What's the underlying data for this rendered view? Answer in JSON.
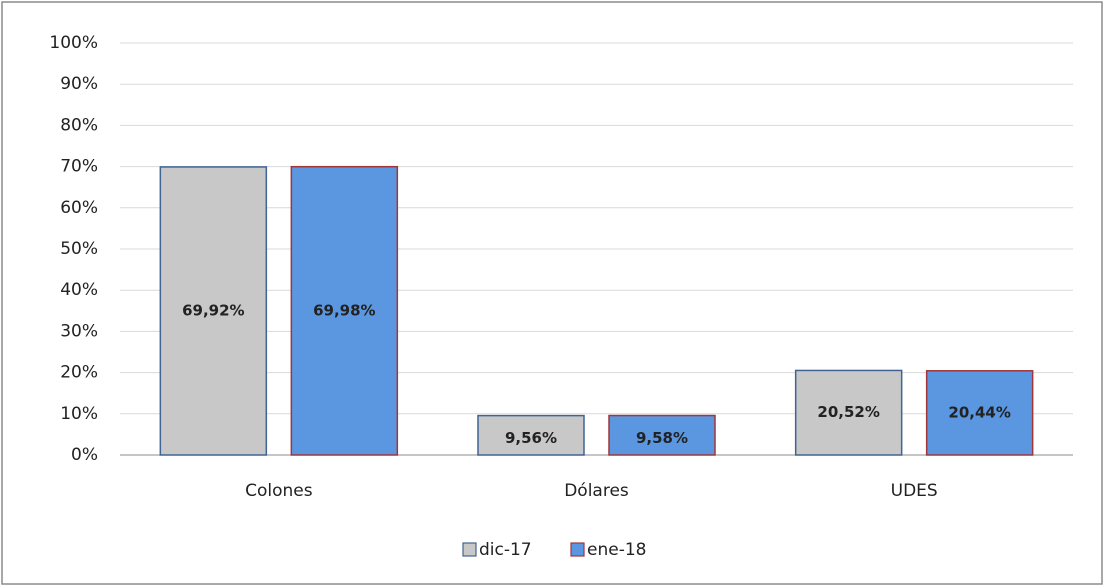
{
  "chart_data": {
    "type": "bar",
    "categories": [
      "Colones",
      "Dólares",
      "UDES"
    ],
    "series": [
      {
        "name": "dic-17",
        "color": "#c8c8c8",
        "edgecolor": "#3f6392",
        "values": [
          69.92,
          9.56,
          20.52
        ],
        "value_labels": [
          "69,92%",
          "9,56%",
          "20,52%"
        ]
      },
      {
        "name": "ene-18",
        "color": "#5b97e0",
        "edgecolor": "#a0353a",
        "values": [
          69.98,
          9.58,
          20.44
        ],
        "value_labels": [
          "69,98%",
          "9,58%",
          "20,44%"
        ]
      }
    ],
    "ylim": [
      0,
      100
    ],
    "yticks": [
      {
        "value": 0,
        "label": "0%"
      },
      {
        "value": 10,
        "label": "10%"
      },
      {
        "value": 20,
        "label": "20%"
      },
      {
        "value": 30,
        "label": "30%"
      },
      {
        "value": 40,
        "label": "40%"
      },
      {
        "value": 50,
        "label": "50%"
      },
      {
        "value": 60,
        "label": "60%"
      },
      {
        "value": 70,
        "label": "70%"
      },
      {
        "value": 80,
        "label": "80%"
      },
      {
        "value": 90,
        "label": "90%"
      },
      {
        "value": 100,
        "label": "100%"
      }
    ],
    "grid": true,
    "legend": "bottom"
  }
}
